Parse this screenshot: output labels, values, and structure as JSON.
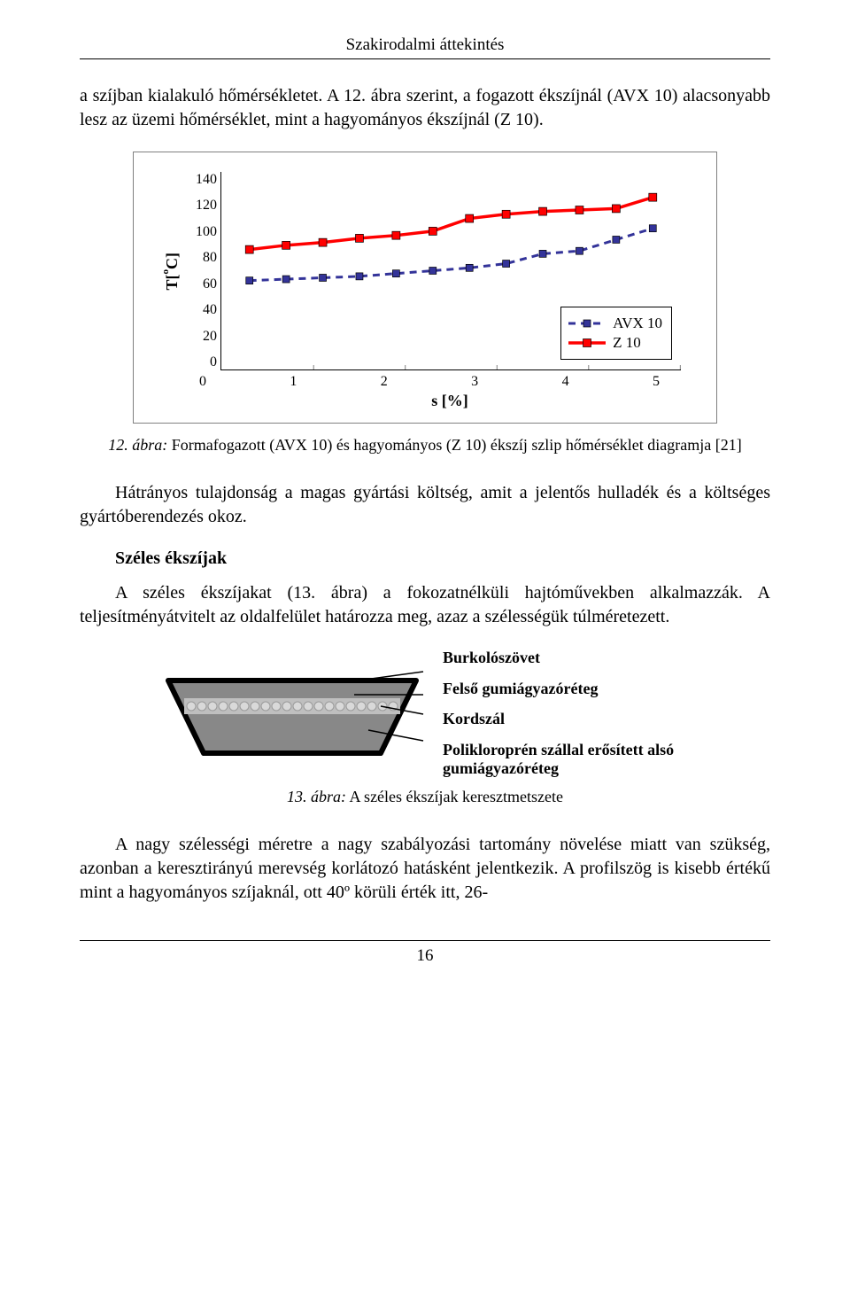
{
  "header": {
    "running_title": "Szakirodalmi áttekintés"
  },
  "paragraphs": {
    "p1": "a szíjban kialakuló hőmérsékletet. A 12. ábra szerint, a fogazott ékszíjnál (AVX 10) alacsonyabb lesz az üzemi hőmérséklet, mint a hagyományos ékszíjnál (Z 10).",
    "p2": "Hátrányos tulajdonság a magas gyártási költség, amit a jelentős hulladék és a költséges gyártóberendezés okoz.",
    "sect_heading": "Széles ékszíjak",
    "p3": "A széles ékszíjakat (13. ábra) a fokozatnélküli hajtóművekben alkalmazzák. A teljesítményátvitelt az oldalfelület határozza meg, azaz a szélességük túlméretezett.",
    "p4": "A nagy szélességi méretre a nagy szabályozási tartomány növelése miatt van szükség, azonban a keresztirányú merevség korlátozó hatásként jelentkezik. A profilszög is kisebb értékű mint a hagyományos szíjaknál, ott 40º körüli érték itt, 26-"
  },
  "chart": {
    "type": "line",
    "title_number": "12. ábra:",
    "title_rest": " Formafogazott (AVX 10) és hagyományos (Z 10) ékszíj szlip hőmérséklet diagramja [21]",
    "ylabel": "T[ºC]",
    "xlabel": "s [%]",
    "ylim": [
      0,
      140
    ],
    "ytick_step": 20,
    "xlim": [
      0,
      5
    ],
    "xtick_step": 1,
    "yticks": [
      "0",
      "20",
      "40",
      "60",
      "80",
      "100",
      "120",
      "140"
    ],
    "xticks": [
      "0",
      "1",
      "2",
      "3",
      "4",
      "5"
    ],
    "background_color": "#ffffff",
    "border_color": "#808080",
    "axis_color": "#000000",
    "tick_mark_color": "#808080",
    "series": [
      {
        "name": "AVX 10",
        "color": "#333399",
        "dash": "8,6",
        "line_width": 3,
        "marker": "square",
        "marker_size": 8,
        "marker_fill": "#333399",
        "x": [
          0.3,
          0.7,
          1.1,
          1.5,
          1.9,
          2.3,
          2.7,
          3.1,
          3.5,
          3.9,
          4.3,
          4.7
        ],
        "y": [
          63,
          64,
          65,
          66,
          68,
          70,
          72,
          75,
          82,
          84,
          92,
          100
        ]
      },
      {
        "name": "Z 10",
        "color": "#ff0000",
        "dash": "",
        "line_width": 3.5,
        "marker": "square",
        "marker_size": 9,
        "marker_fill": "#ff0000",
        "x": [
          0.3,
          0.7,
          1.1,
          1.5,
          1.9,
          2.3,
          2.7,
          3.1,
          3.5,
          3.9,
          4.3,
          4.7
        ],
        "y": [
          85,
          88,
          90,
          93,
          95,
          98,
          107,
          110,
          112,
          113,
          114,
          122
        ]
      }
    ],
    "legend": {
      "items": [
        "AVX 10",
        "Z 10"
      ]
    }
  },
  "belt": {
    "caption": " A széles ékszíjak keresztmetszete",
    "caption_number": "13. ábra:",
    "labels": [
      "Burkolószövet",
      "Felső gumiágyazóréteg",
      "Kordszál",
      "Polikloroprén szállal erősített alsó gumiágyazóréteg"
    ],
    "colors": {
      "outer": "#000000",
      "upper": "#888888",
      "band": "#bfbfbf",
      "cord": "#d9d9d9",
      "cord_stroke": "#9a9a9a",
      "lower": "#888888",
      "leader": "#000000"
    }
  },
  "footer": {
    "page": "16"
  }
}
